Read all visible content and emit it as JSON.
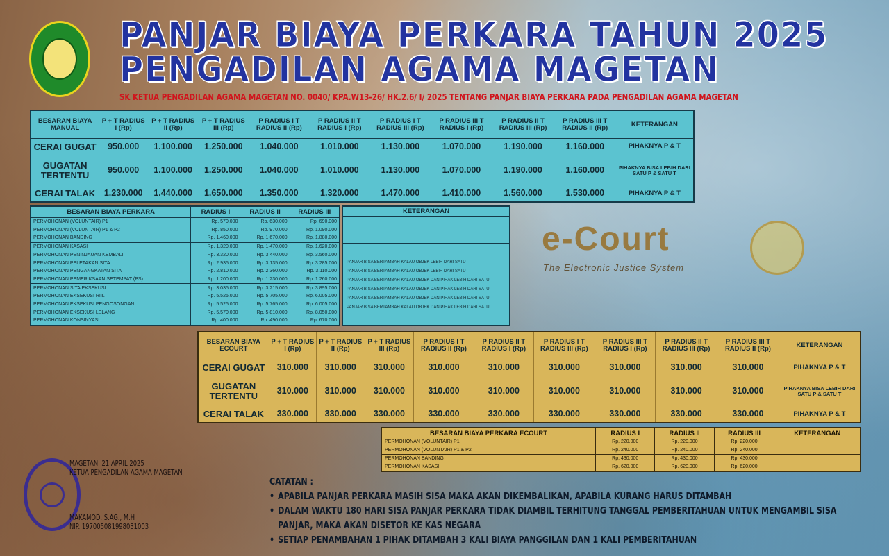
{
  "header": {
    "title_line1": "PANJAR BIAYA PERKARA TAHUN 2025",
    "title_line2": "PENGADILAN AGAMA MAGETAN",
    "sk": "SK KETUA PENGADILAN AGAMA MAGETAN NO. 0040/ KPA.W13-26/ HK.2.6/ I/ 2025 TENTANG PANJAR BIAYA PERKARA PADA PENGADILAN AGAMA MAGETAN"
  },
  "colors": {
    "manual_table": "#5bc3d0",
    "ecourt_table": "#d9b65a",
    "title": "#2233a0",
    "sk": "#d0141c"
  },
  "manual": {
    "headers": [
      "BESARAN BIAYA MANUAL",
      "P + T RADIUS I (Rp)",
      "P + T RADIUS II (Rp)",
      "P + T RADIUS III (Rp)",
      "P RADIUS I T RADIUS II (Rp)",
      "P RADIUS II T RADIUS I (Rp)",
      "P RADIUS I T RADIUS III (Rp)",
      "P RADIUS III T RADIUS I (Rp)",
      "P RADIUS II T RADIUS III (Rp)",
      "P RADIUS III T RADIUS II (Rp)",
      "KETERANGAN"
    ],
    "rows": [
      {
        "label": "CERAI GUGAT",
        "values": [
          "950.000",
          "1.100.000",
          "1.250.000",
          "1.040.000",
          "1.010.000",
          "1.130.000",
          "1.070.000",
          "1.190.000",
          "1.160.000"
        ],
        "ket": "PIHAKNYA P & T"
      },
      {
        "label": "GUGATAN TERTENTU",
        "values": [
          "950.000",
          "1.100.000",
          "1.250.000",
          "1.040.000",
          "1.010.000",
          "1.130.000",
          "1.070.000",
          "1.190.000",
          "1.160.000"
        ],
        "ket": "PIHAKNYA BISA LEBIH DARI SATU P & SATU T"
      },
      {
        "label": "CERAI TALAK",
        "values": [
          "1.230.000",
          "1.440.000",
          "1.650.000",
          "1.350.000",
          "1.320.000",
          "1.470.000",
          "1.410.000",
          "1.560.000",
          "1.530.000"
        ],
        "ket": "PIHAKNYA P & T"
      }
    ]
  },
  "perkara": {
    "headers": [
      "BESARAN BIAYA PERKARA",
      "RADIUS I",
      "RADIUS II",
      "RADIUS III"
    ],
    "ket_header": "KETERANGAN",
    "rows": [
      {
        "label": "PERMOHONAN (VOLUNTAIR) P1",
        "values": [
          "Rp. 570.000",
          "Rp. 630.000",
          "Rp. 690.000"
        ]
      },
      {
        "label": "PERMOHONAN (VOLUNTAIR) P1 & P2",
        "values": [
          "Rp. 850.000",
          "Rp. 970.000",
          "Rp. 1.090.000"
        ]
      },
      {
        "label": "PERMOHONAN BANDING",
        "values": [
          "Rp. 1.460.000",
          "Rp. 1.670.000",
          "Rp. 1.880.000"
        ]
      },
      {
        "label": "PERMOHONAN KASASI",
        "values": [
          "Rp. 1.320.000",
          "Rp. 1.470.000",
          "Rp. 1.620.000"
        ]
      },
      {
        "label": "PERMOHONAN PENINJAUAN KEMBALI",
        "values": [
          "Rp. 3.320.000",
          "Rp. 3.440.000",
          "Rp. 3.560.000"
        ]
      },
      {
        "label": "PERMOHONAN PELETAKAN SITA",
        "values": [
          "Rp. 2.935.000",
          "Rp. 3.135.000",
          "Rp. 3.285.000"
        ]
      },
      {
        "label": "PERMOHONAN PENGANGKATAN SITA",
        "values": [
          "Rp. 2.810.000",
          "Rp. 2.360.000",
          "Rp. 3.110.000"
        ]
      },
      {
        "label": "PERMOHONAN PEMERIKSAAN SETEMPAT (PS)",
        "values": [
          "Rp. 1.200.000",
          "Rp. 1.230.000",
          "Rp. 1.260.000"
        ]
      },
      {
        "label": "PERMOHONAN SITA EKSEKUSI",
        "values": [
          "Rp. 3.035.000",
          "Rp. 3.215.000",
          "Rp. 3.895.000"
        ]
      },
      {
        "label": "PERMOHONAN EKSEKUSI RIIL",
        "values": [
          "Rp. 5.525.000",
          "Rp. 5.705.000",
          "Rp. 6.005.000"
        ]
      },
      {
        "label": "PERMOHONAN EKSEKUSI PENGOSONGAN",
        "values": [
          "Rp. 5.525.000",
          "Rp. 5.765.000",
          "Rp. 6.005.000"
        ]
      },
      {
        "label": "PERMOHONAN EKSEKUSI LELANG",
        "values": [
          "Rp. 5.570.000",
          "Rp. 5.810.000",
          "Rp. 8.050.000"
        ]
      },
      {
        "label": "PERMOHONAN KONSINYASI",
        "values": [
          "Rp. 400.000",
          "Rp. 490.000",
          "Rp. 670.000"
        ]
      }
    ],
    "notes": [
      "PANJAR BISA BERTAMBAH KALAU OBJEK LEBIH DARI SATU",
      "PANJAR BISA BERTAMBAH KALAU OBJEK LEBIH DARI SATU",
      "PANJAR BISA BERTAMBAH KALAU OBJEK DAN PIHAK LEBIH DARI SATU",
      "PANJAR BISA BERTAMBAH KALAU OBJEK DAN PIHAK LEBIH DARI SATU",
      "PANJAR BISA BERTAMBAH KALAU OBJEK DAN PIHAK LEBIH DARI SATU",
      "PANJAR BISA BERTAMBAH KALAU OBJEK DAN PIHAK LEBIH DARI SATU"
    ]
  },
  "ecourt": {
    "headers": [
      "BESARAN BIAYA ECOURT",
      "P + T RADIUS I (Rp)",
      "P + T RADIUS II (Rp)",
      "P + T RADIUS III (Rp)",
      "P RADIUS I T RADIUS II (Rp)",
      "P RADIUS II T RADIUS I (Rp)",
      "P RADIUS I T RADIUS III (Rp)",
      "P RADIUS III T RADIUS I (Rp)",
      "P RADIUS II T RADIUS III (Rp)",
      "P RADIUS III T RADIUS II (Rp)",
      "KETERANGAN"
    ],
    "rows": [
      {
        "label": "CERAI GUGAT",
        "values": [
          "310.000",
          "310.000",
          "310.000",
          "310.000",
          "310.000",
          "310.000",
          "310.000",
          "310.000",
          "310.000"
        ],
        "ket": "PIHAKNYA P & T"
      },
      {
        "label": "GUGATAN TERTENTU",
        "values": [
          "310.000",
          "310.000",
          "310.000",
          "310.000",
          "310.000",
          "310.000",
          "310.000",
          "310.000",
          "310.000"
        ],
        "ket": "PIHAKNYA BISA LEBIH DARI SATU P & SATU T"
      },
      {
        "label": "CERAI TALAK",
        "values": [
          "330.000",
          "330.000",
          "330.000",
          "330.000",
          "330.000",
          "330.000",
          "330.000",
          "330.000",
          "330.000"
        ],
        "ket": "PIHAKNYA P & T"
      }
    ],
    "logo_text": "e-Court",
    "logo_sub": "The Electronic Justice System"
  },
  "ecourt_perkara": {
    "headers": [
      "BESARAN BIAYA PERKARA ECOURT",
      "RADIUS I",
      "RADIUS II",
      "RADIUS III",
      "KETERANGAN"
    ],
    "rows": [
      {
        "label": "PERMOHONAN (VOLUNTAIR) P1",
        "values": [
          "Rp. 220.000",
          "Rp. 220.000",
          "Rp. 220.000"
        ]
      },
      {
        "label": "PERMOHONAN (VOLUNTAIR) P1 & P2",
        "values": [
          "Rp. 240.000",
          "Rp. 240.000",
          "Rp. 240.000"
        ]
      },
      {
        "label": "PERMOHONAN BANDING",
        "values": [
          "Rp. 430.000",
          "Rp. 430.000",
          "Rp. 430.000"
        ]
      },
      {
        "label": "PERMOHONAN KASASI",
        "values": [
          "Rp. 620.000",
          "Rp. 620.000",
          "Rp. 620.000"
        ]
      }
    ]
  },
  "catatan": {
    "title": "CATATAN :",
    "items": [
      "APABILA PANJAR PERKARA MASIH SISA MAKA AKAN DIKEMBALIKAN, APABILA KURANG HARUS DITAMBAH",
      "DALAM WAKTU 180 HARI SISA PANJAR PERKARA TIDAK DIAMBIL TERHITUNG TANGGAL PEMBERITAHUAN UNTUK MENGAMBIL SISA PANJAR, MAKA AKAN DISETOR KE KAS NEGARA",
      "SETIAP PENAMBAHAN 1 PIHAK DITAMBAH 3 KALI BIAYA PANGGILAN DAN 1 KALI PEMBERITAHUAN"
    ]
  },
  "signature": {
    "place_date": "MAGETAN, 21 APRIL 2025",
    "position": "KETUA PENGADILAN AGAMA MAGETAN",
    "name": "MAKAMOD, S.AG., M.H",
    "nip": "NIP. 197005081998031003"
  }
}
